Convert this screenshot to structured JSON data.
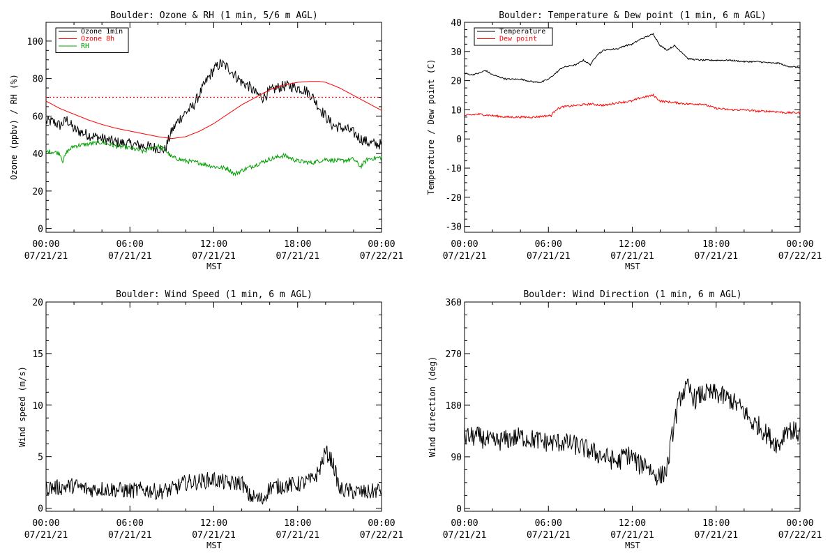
{
  "chart_data": [
    {
      "type": "line",
      "title": "Boulder: Ozone & RH (1 min, 5/6 m AGL)",
      "ylabel": "Ozone (ppbv) / RH (%)",
      "xlabel": "MST",
      "ylim": [
        -2,
        110
      ],
      "yticks": [
        0,
        20,
        40,
        60,
        80,
        100
      ],
      "xticks": [
        {
          "h": 0,
          "time": "00:00",
          "date": "07/21/21"
        },
        {
          "h": 6,
          "time": "06:00",
          "date": "07/21/21"
        },
        {
          "h": 12,
          "time": "12:00",
          "date": "07/21/21"
        },
        {
          "h": 18,
          "time": "18:00",
          "date": "07/21/21"
        },
        {
          "h": 24,
          "time": "00:00",
          "date": "07/22/21"
        }
      ],
      "legend": "top-left",
      "reference_line": {
        "y": 70,
        "color": "#ff0000",
        "style": "dotted"
      },
      "series": [
        {
          "name": "Ozone 1min",
          "color": "#000000",
          "noise": 3,
          "x": [
            0,
            0.5,
            1,
            1.5,
            2,
            3,
            4,
            5,
            6,
            7,
            8,
            8.5,
            9,
            9.5,
            10,
            10.5,
            11,
            11.5,
            12,
            12.5,
            13,
            13.5,
            14,
            14.5,
            15,
            15.5,
            16,
            16.5,
            17,
            17.5,
            18,
            18.5,
            19,
            19.5,
            20,
            20.5,
            21,
            21.5,
            22,
            22.5,
            23,
            23.5,
            24
          ],
          "y": [
            57,
            57,
            55,
            58,
            53,
            50,
            48,
            46,
            45,
            44,
            43,
            42,
            52,
            58,
            62,
            65,
            72,
            79,
            85,
            88,
            86,
            82,
            78,
            76,
            72,
            70,
            73,
            75,
            76,
            76,
            75,
            74,
            71,
            65,
            60,
            55,
            54,
            53,
            51,
            48,
            46,
            45,
            45
          ]
        },
        {
          "name": "Ozone 8h",
          "color": "#ff0000",
          "noise": 0,
          "x": [
            0,
            1,
            2,
            3,
            4,
            5,
            6,
            7,
            8,
            9,
            10,
            11,
            12,
            13,
            14,
            15,
            16,
            17,
            18,
            19,
            19.5,
            20,
            21,
            22,
            23,
            24
          ],
          "y": [
            68,
            64,
            61,
            58,
            55.5,
            53.5,
            52,
            50.5,
            49,
            48,
            49,
            52,
            56,
            61,
            66,
            70,
            74,
            76.5,
            78,
            78.5,
            78.5,
            78,
            75,
            71,
            67,
            63
          ]
        },
        {
          "name": "RH",
          "color": "#00a000",
          "noise": 1.2,
          "x": [
            0,
            0.5,
            1,
            1.2,
            1.5,
            2,
            3,
            4,
            5,
            6,
            7,
            7.5,
            8,
            8.5,
            9,
            10,
            11,
            12,
            13,
            13.5,
            14,
            15,
            16,
            17,
            18,
            19,
            20,
            21,
            22,
            22.5,
            23,
            24
          ],
          "y": [
            41,
            41,
            40,
            36,
            41,
            44,
            45,
            46,
            44,
            43,
            41,
            43,
            44,
            42,
            38,
            36,
            35,
            33,
            32,
            29,
            31,
            34,
            37,
            39,
            36,
            35,
            37,
            36,
            37,
            33,
            37,
            38
          ]
        }
      ]
    },
    {
      "type": "line",
      "title": "Boulder: Temperature & Dew point (1 min, 6 m AGL)",
      "ylabel": "Temperature / Dew point (C)",
      "xlabel": "MST",
      "ylim": [
        -32,
        40
      ],
      "yticks": [
        -30,
        -20,
        -10,
        0,
        10,
        20,
        30,
        40
      ],
      "xticks": [
        {
          "h": 0,
          "time": "00:00",
          "date": "07/21/21"
        },
        {
          "h": 6,
          "time": "06:00",
          "date": "07/21/21"
        },
        {
          "h": 12,
          "time": "12:00",
          "date": "07/21/21"
        },
        {
          "h": 18,
          "time": "18:00",
          "date": "07/21/21"
        },
        {
          "h": 24,
          "time": "00:00",
          "date": "07/22/21"
        }
      ],
      "legend": "top-left",
      "series": [
        {
          "name": "Temperature",
          "color": "#000000",
          "noise": 0.25,
          "x": [
            0,
            0.5,
            1,
            1.5,
            2,
            3,
            4,
            5,
            5.5,
            6,
            6.5,
            7,
            8,
            8.5,
            9,
            9.5,
            10,
            11,
            11.5,
            12,
            12.5,
            13,
            13.5,
            14,
            14.5,
            15,
            15.5,
            16,
            17,
            18,
            19,
            20,
            21,
            22,
            22.5,
            23,
            24
          ],
          "y": [
            22.5,
            22,
            22.5,
            23.5,
            22,
            20.5,
            20.5,
            19.5,
            19.5,
            20.5,
            22.5,
            24.5,
            25.5,
            27,
            25.5,
            29,
            30.5,
            31,
            32,
            32.5,
            34,
            35,
            36,
            32,
            30.5,
            32,
            30,
            27.5,
            27,
            27,
            27,
            26.5,
            26.5,
            26,
            26,
            25,
            24.5
          ]
        },
        {
          "name": "Dew point",
          "color": "#ff0000",
          "noise": 0.35,
          "x": [
            0,
            1,
            2,
            3,
            4,
            5,
            6,
            6.2,
            6.5,
            7,
            8,
            9,
            10,
            11,
            12,
            12.5,
            13,
            13.5,
            14,
            15,
            16,
            17,
            18,
            19,
            20,
            21,
            22,
            23,
            24
          ],
          "y": [
            8,
            8.5,
            8,
            7.5,
            7.5,
            7.5,
            8,
            8,
            10,
            11,
            11.5,
            12,
            11.5,
            12.5,
            13,
            14,
            14.5,
            15,
            13,
            12.5,
            12,
            12,
            10.5,
            10,
            10,
            9.5,
            9.5,
            9,
            9
          ]
        }
      ]
    },
    {
      "type": "line",
      "title": "Boulder: Wind Speed (1 min, 6 m AGL)",
      "ylabel": "Wind speed (m/s)",
      "xlabel": "MST",
      "ylim": [
        -0.3,
        20
      ],
      "yticks": [
        0,
        5,
        10,
        15,
        20
      ],
      "xticks": [
        {
          "h": 0,
          "time": "00:00",
          "date": "07/21/21"
        },
        {
          "h": 6,
          "time": "06:00",
          "date": "07/21/21"
        },
        {
          "h": 12,
          "time": "12:00",
          "date": "07/21/21"
        },
        {
          "h": 18,
          "time": "18:00",
          "date": "07/21/21"
        },
        {
          "h": 24,
          "time": "00:00",
          "date": "07/22/21"
        }
      ],
      "legend": "none",
      "series": [
        {
          "name": "",
          "color": "#000000",
          "noise": 0.8,
          "x": [
            0,
            1,
            2,
            3,
            4,
            5,
            6,
            7,
            8,
            9,
            10,
            11,
            12,
            13,
            14,
            14.5,
            15,
            15.5,
            16,
            17,
            18,
            19,
            19.5,
            20,
            20.5,
            21,
            22,
            23,
            24
          ],
          "y": [
            2,
            2,
            2.2,
            1.8,
            1.9,
            1.8,
            1.7,
            1.8,
            1.6,
            1.8,
            2.5,
            2.6,
            2.8,
            2.4,
            2.5,
            1.2,
            1,
            0.8,
            2,
            2.2,
            2.3,
            2.7,
            3.5,
            5.5,
            4.5,
            1.8,
            1.6,
            1.5,
            1.8
          ]
        }
      ]
    },
    {
      "type": "line",
      "title": "Boulder: Wind Direction (1 min, 6 m AGL)",
      "ylabel": "Wind direction (deg)",
      "xlabel": "MST",
      "ylim": [
        -5,
        360
      ],
      "yticks": [
        0,
        90,
        180,
        270,
        360
      ],
      "xticks": [
        {
          "h": 0,
          "time": "00:00",
          "date": "07/21/21"
        },
        {
          "h": 6,
          "time": "06:00",
          "date": "07/21/21"
        },
        {
          "h": 12,
          "time": "12:00",
          "date": "07/21/21"
        },
        {
          "h": 18,
          "time": "18:00",
          "date": "07/21/21"
        },
        {
          "h": 24,
          "time": "00:00",
          "date": "07/22/21"
        }
      ],
      "legend": "none",
      "series": [
        {
          "name": "",
          "color": "#000000",
          "noise": 18,
          "x": [
            0,
            1,
            2,
            3,
            4,
            5,
            6,
            7,
            8,
            8.5,
            9,
            10,
            11,
            11.5,
            12,
            12.5,
            13,
            13.5,
            14,
            14.5,
            15,
            15.5,
            16,
            16.5,
            17,
            18,
            19,
            20,
            20.5,
            21,
            22,
            22.5,
            23,
            24
          ],
          "y": [
            125,
            125,
            115,
            120,
            125,
            120,
            115,
            115,
            110,
            105,
            100,
            90,
            80,
            95,
            90,
            75,
            80,
            60,
            55,
            70,
            150,
            200,
            210,
            190,
            200,
            200,
            190,
            170,
            150,
            145,
            120,
            110,
            140,
            130
          ]
        }
      ]
    }
  ]
}
